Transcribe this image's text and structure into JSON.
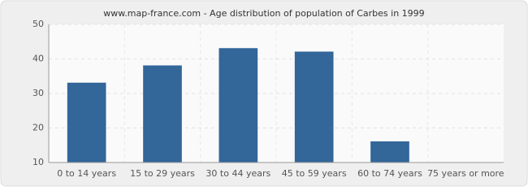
{
  "chart_data": {
    "type": "bar",
    "title": "www.map-france.com - Age distribution of population of Carbes in 1999",
    "categories": [
      "0 to 14 years",
      "15 to 29 years",
      "30 to 44 years",
      "45 to 59 years",
      "60 to 74 years",
      "75 years or more"
    ],
    "values": [
      33,
      38,
      43,
      42,
      16,
      10
    ],
    "color": "#336699",
    "ylim": [
      10,
      50
    ],
    "yticks": [
      10,
      20,
      30,
      40,
      50
    ],
    "grid": true
  }
}
